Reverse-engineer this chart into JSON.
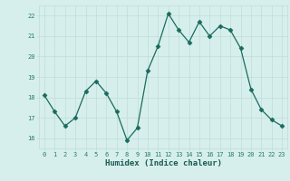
{
  "x": [
    0,
    1,
    2,
    3,
    4,
    5,
    6,
    7,
    8,
    9,
    10,
    11,
    12,
    13,
    14,
    15,
    16,
    17,
    18,
    19,
    20,
    21,
    22,
    23
  ],
  "y": [
    18.1,
    17.3,
    16.6,
    17.0,
    18.3,
    18.8,
    18.2,
    17.3,
    15.9,
    16.5,
    19.3,
    20.5,
    22.1,
    21.3,
    20.7,
    21.7,
    21.0,
    21.5,
    21.3,
    20.4,
    18.4,
    17.4,
    16.9,
    16.6
  ],
  "line_color": "#1a6b5e",
  "marker": "D",
  "marker_size": 2.5,
  "bg_color": "#d6efed",
  "grid_major_color": "#c0dbd8",
  "grid_minor_color": "#daeeed",
  "xlabel": "Humidex (Indice chaleur)",
  "ylim": [
    15.5,
    22.5
  ],
  "xlim": [
    -0.5,
    23.5
  ],
  "yticks": [
    16,
    17,
    18,
    19,
    20,
    21,
    22
  ],
  "xticks": [
    0,
    1,
    2,
    3,
    4,
    5,
    6,
    7,
    8,
    9,
    10,
    11,
    12,
    13,
    14,
    15,
    16,
    17,
    18,
    19,
    20,
    21,
    22,
    23
  ],
  "tick_color": "#2a7a6e",
  "label_color": "#1a5a50"
}
